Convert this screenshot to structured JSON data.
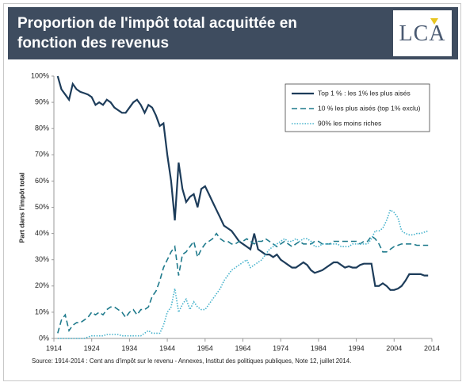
{
  "header": {
    "title": "Proportion de l'impôt total acquittée en fonction des revenus",
    "logo": "LCA"
  },
  "chart_data": {
    "type": "line",
    "y_label": "Part dans l'impôt total",
    "source": "Source: 1914-2014 : Cent ans d'impôt sur le revenu - Annexes, Institut des politiques publiques, Note 12, juillet 2014.",
    "x": [
      1915,
      1916,
      1917,
      1918,
      1919,
      1920,
      1921,
      1922,
      1923,
      1924,
      1925,
      1926,
      1927,
      1928,
      1929,
      1930,
      1931,
      1932,
      1933,
      1934,
      1935,
      1936,
      1937,
      1938,
      1939,
      1940,
      1941,
      1942,
      1943,
      1944,
      1945,
      1946,
      1947,
      1948,
      1949,
      1950,
      1951,
      1952,
      1953,
      1954,
      1955,
      1956,
      1957,
      1958,
      1959,
      1960,
      1961,
      1962,
      1963,
      1964,
      1965,
      1966,
      1967,
      1968,
      1969,
      1970,
      1971,
      1972,
      1973,
      1974,
      1975,
      1976,
      1977,
      1978,
      1979,
      1980,
      1981,
      1982,
      1983,
      1984,
      1985,
      1986,
      1987,
      1988,
      1989,
      1990,
      1991,
      1992,
      1993,
      1994,
      1995,
      1996,
      1997,
      1998,
      1999,
      2000,
      2001,
      2002,
      2003,
      2004,
      2005,
      2006,
      2007,
      2008,
      2009,
      2010,
      2011,
      2012,
      2013
    ],
    "series": [
      {
        "name": "Top 1 % : les 1% les plus aisés",
        "color": "#1d3c5a",
        "line_style": "solid",
        "values": [
          100,
          95,
          93,
          91,
          97,
          95,
          94,
          93.5,
          93,
          92,
          89,
          90,
          89,
          91,
          90,
          88,
          87,
          86,
          86,
          88,
          90,
          91,
          89,
          86,
          89,
          88,
          85,
          81,
          82,
          70,
          60,
          45,
          67,
          57,
          52,
          54,
          55,
          50,
          57,
          58,
          55,
          52,
          49,
          46,
          43,
          42,
          41,
          39,
          37,
          36,
          35,
          34,
          40,
          34,
          33,
          32,
          32,
          31,
          32,
          30,
          29,
          28,
          27,
          27,
          28,
          29,
          28,
          26,
          25,
          25.5,
          26,
          27,
          28,
          29,
          29,
          28,
          27,
          27.5,
          27,
          27,
          28,
          28.5,
          28.5,
          28.5,
          20,
          20,
          21,
          20,
          18.5,
          18.5,
          19,
          20,
          22,
          24.5,
          24.5,
          24.5,
          24.5,
          24,
          24
        ]
      },
      {
        "name": "10 % les plus aisés (top 1% exclu)",
        "color": "#1f7a8c",
        "line_style": "dashed",
        "values": [
          2,
          7,
          9,
          3,
          5,
          6,
          6,
          7,
          8,
          10,
          9,
          10,
          9,
          11,
          12,
          12,
          11,
          10,
          8,
          10,
          11,
          9,
          11,
          11,
          12,
          16,
          18,
          22,
          27,
          30,
          33,
          35,
          24,
          32,
          33,
          35,
          37,
          31,
          34,
          36,
          37,
          38,
          40,
          38,
          37,
          37,
          36,
          36,
          37,
          37,
          38,
          37,
          36,
          37,
          37,
          38,
          37,
          36,
          35,
          36,
          37,
          36,
          35,
          36,
          37,
          36,
          36,
          36,
          37,
          37,
          36,
          36,
          36,
          37,
          37,
          37,
          37,
          37,
          37,
          37,
          36,
          37,
          37,
          39,
          38,
          36,
          33,
          33,
          34,
          35,
          35.5,
          36,
          36,
          36,
          36,
          35.5,
          35.5,
          35.5,
          35.5
        ]
      },
      {
        "name": "90% les moins riches",
        "color": "#45b2cc",
        "line_style": "dotted",
        "values": [
          0,
          0,
          0,
          0,
          0,
          0,
          0,
          0,
          0.5,
          1,
          1,
          1,
          1,
          1.5,
          1.5,
          1.5,
          1.5,
          1,
          1,
          1,
          1,
          1,
          1,
          2,
          3,
          2,
          2,
          2,
          5,
          10,
          12,
          19,
          10,
          13,
          15,
          11,
          14,
          12,
          11,
          11,
          13,
          15,
          17,
          19,
          22,
          24,
          26,
          27,
          28,
          29,
          30,
          27,
          28,
          29,
          30,
          32,
          34,
          35,
          36,
          37,
          38,
          37,
          37,
          38,
          37,
          38,
          38,
          37,
          35,
          35,
          36,
          36,
          36,
          36,
          36,
          35,
          35,
          35,
          36,
          36,
          36,
          36,
          36,
          38,
          41,
          41,
          42,
          45,
          49,
          48,
          46,
          41,
          40,
          39.5,
          39.5,
          40,
          40,
          40.5,
          41
        ]
      }
    ],
    "xlim": [
      1914,
      2014
    ],
    "xticks": [
      1914,
      1924,
      1934,
      1944,
      1954,
      1964,
      1974,
      1984,
      1994,
      2004,
      2014
    ],
    "ylim": [
      0,
      100
    ],
    "yticks": [
      {
        "value": 0,
        "label": "0%"
      },
      {
        "value": 10,
        "label": "10%"
      },
      {
        "value": 20,
        "label": "20%"
      },
      {
        "value": 30,
        "label": "30%"
      },
      {
        "value": 40,
        "label": "40%"
      },
      {
        "value": 50,
        "label": "50%"
      },
      {
        "value": 60,
        "label": "60%"
      },
      {
        "value": 70,
        "label": "70%"
      },
      {
        "value": 80,
        "label": "80%"
      },
      {
        "value": 90,
        "label": "90%"
      },
      {
        "value": 100,
        "label": "100%"
      }
    ],
    "grid": false,
    "legend": "top-right"
  }
}
